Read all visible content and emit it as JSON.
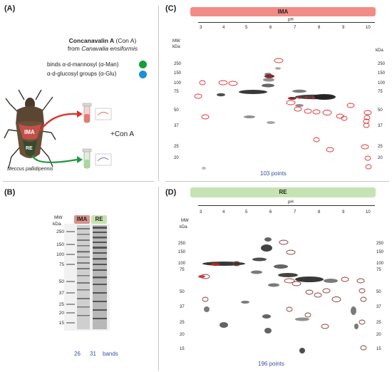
{
  "panel_a": {
    "label": "(A)",
    "title_bold": "Concanavalin A",
    "title_rest": " (Con A)",
    "from_text": "from ",
    "species_italic": "Canavalia ensiformis",
    "binds_line1": "binds α-d-mannosyl (α-Man)",
    "binds_line2": "α-d-glucosyl groups (α-Glu)",
    "dot_colors": [
      "#1a9c3a",
      "#1e8fd8"
    ],
    "insect_ima": "IMA",
    "insect_re": "RE",
    "insect_name": "Meccus pallidipennis",
    "con_a": "+Con A",
    "arrow_red": "#e0302a",
    "arrow_green": "#1e9a3e"
  },
  "panel_b": {
    "label": "(B)",
    "mw": "MW",
    "kda": "kDa",
    "ima": "IMA",
    "re": "RE",
    "ladder": [
      "250",
      "150",
      "100",
      "75",
      "50",
      "37",
      "25",
      "20",
      "15"
    ],
    "count_ima": "26",
    "count_re": "31",
    "bands_word": "bands",
    "ima_color": "#d9938a",
    "re_color": "#c9e2b0"
  },
  "panel_c": {
    "label": "(C)",
    "banner": "IMA",
    "banner_color": "#f28b86",
    "ph": "pH",
    "ph_ticks": [
      "3",
      "4",
      "5",
      "6",
      "7",
      "8",
      "9",
      "10"
    ],
    "mw": "MW",
    "kda": "kDa",
    "mw_left": [
      "250",
      "150",
      "100",
      "75",
      "50",
      "37",
      "25",
      "20"
    ],
    "mw_right": [
      "250",
      "150",
      "100",
      "75",
      "50",
      "37",
      "25",
      "20"
    ],
    "points": "103 points"
  },
  "panel_d": {
    "label": "(D)",
    "banner": "RE",
    "banner_color": "#c6e3b3",
    "ph": "pH",
    "ph_ticks": [
      "3",
      "4",
      "5",
      "6",
      "7",
      "8",
      "9",
      "10"
    ],
    "mw": "MW",
    "kda": "kDa",
    "mw_left": [
      "250",
      "150",
      "100",
      "75",
      "50",
      "37",
      "25",
      "20",
      "15"
    ],
    "mw_right": [
      "250",
      "150",
      "100",
      "75",
      "50",
      "37",
      "25",
      "20",
      "15"
    ],
    "points": "196 points"
  }
}
